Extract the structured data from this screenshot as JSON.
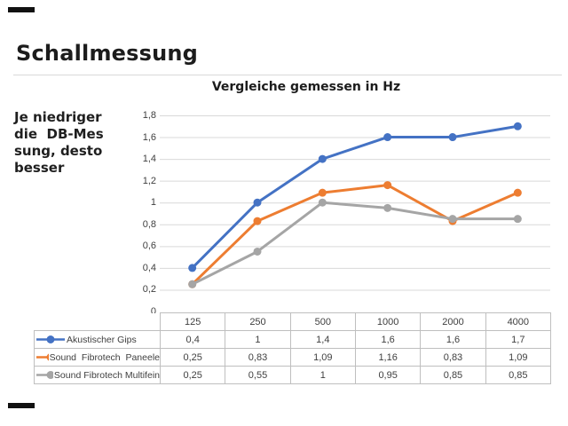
{
  "page": {
    "title": "Schallmessung",
    "note_lines": [
      "Je niedriger",
      "die  DB-Mes",
      "sung, desto",
      "besser"
    ]
  },
  "chart_data": {
    "type": "line",
    "title": "Vergleiche gemessen in Hz",
    "categories": [
      "125",
      "250",
      "500",
      "1000",
      "2000",
      "4000"
    ],
    "series": [
      {
        "name": "Akustischer Gips",
        "color": "#4472C4",
        "values": [
          0.4,
          1.0,
          1.4,
          1.6,
          1.6,
          1.7
        ],
        "display_values": [
          "0,4",
          "1",
          "1,4",
          "1,6",
          "1,6",
          "1,7"
        ]
      },
      {
        "name": "Sound  Fibrotech  Paneele",
        "color": "#ED7D31",
        "values": [
          0.25,
          0.83,
          1.09,
          1.16,
          0.83,
          1.09
        ],
        "display_values": [
          "0,25",
          "0,83",
          "1,09",
          "1,16",
          "0,83",
          "1,09"
        ]
      },
      {
        "name": "Sound Fibrotech Multifein",
        "color": "#A5A5A5",
        "values": [
          0.25,
          0.55,
          1.0,
          0.95,
          0.85,
          0.85
        ],
        "display_values": [
          "0,25",
          "0,55",
          "1",
          "0,95",
          "0,85",
          "0,85"
        ]
      }
    ],
    "xlabel": "",
    "ylabel": "",
    "ylim": [
      0,
      1.8
    ],
    "ytick_step": 0.2,
    "ytick_labels": [
      "0",
      "0,2",
      "0,4",
      "0,6",
      "0,8",
      "1",
      "1,2",
      "1,4",
      "1,6",
      "1,8"
    ],
    "grid": true,
    "legend_position": "data-table-left",
    "colors": {
      "gridline": "#D9D9D9",
      "table_border": "#BFBFBF",
      "text": "#404040"
    }
  }
}
